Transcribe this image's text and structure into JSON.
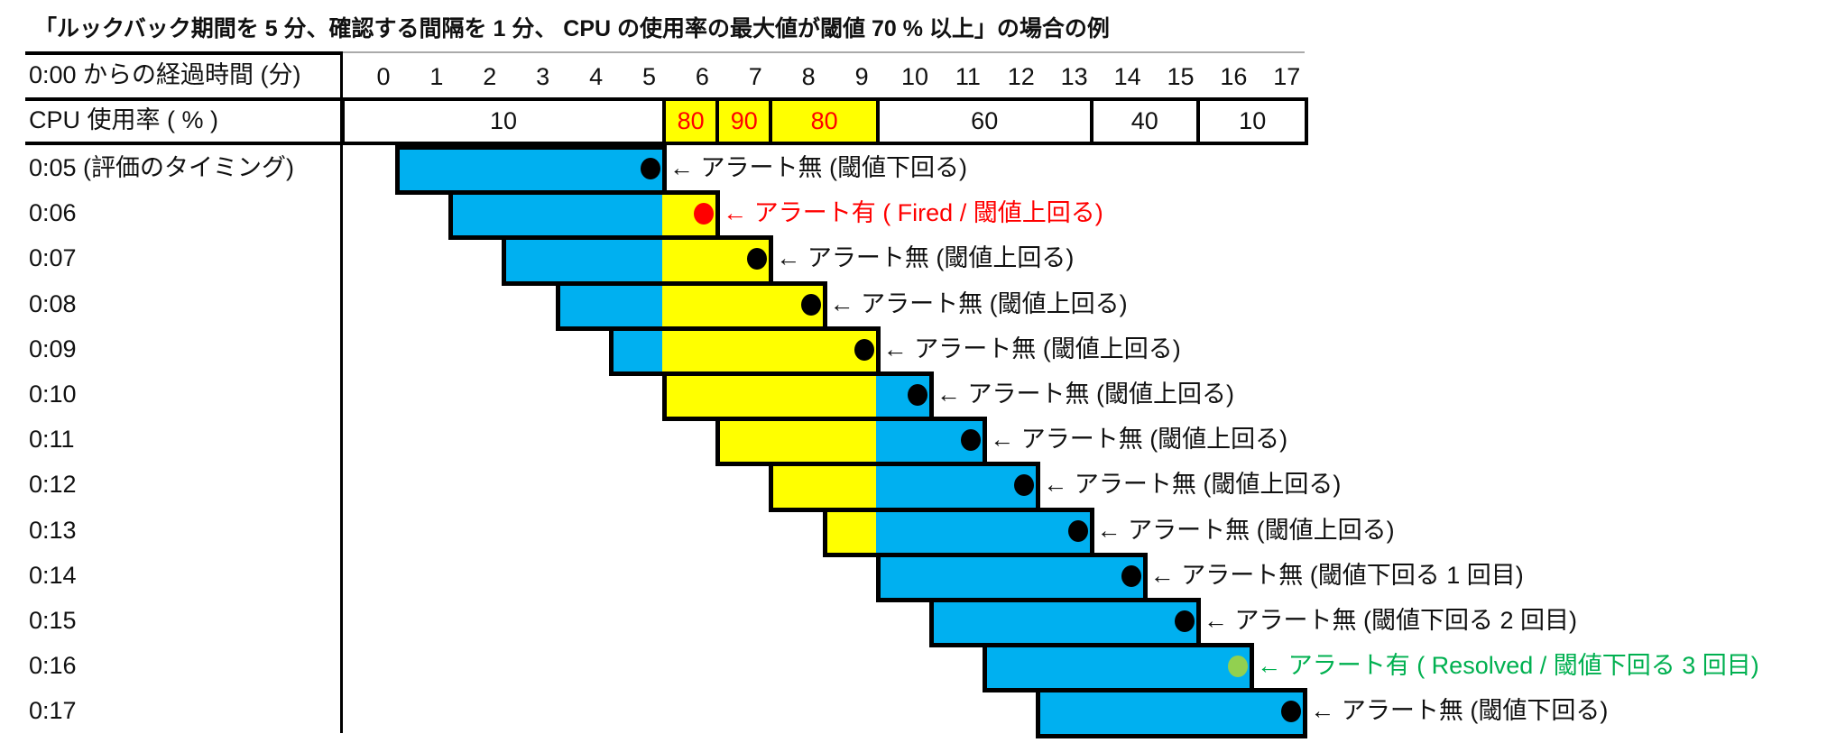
{
  "title": "「ルックバック期間を 5 分、確認する間隔を 1 分、 CPU の使用率の最大値が閾値 70 % 以上」の場合の例",
  "header": {
    "elapsed_label": "0:00 からの経過時間 (分)",
    "minutes": [
      "0",
      "1",
      "2",
      "3",
      "4",
      "5",
      "6",
      "7",
      "8",
      "9",
      "10",
      "11",
      "12",
      "13",
      "14",
      "15",
      "16",
      "17"
    ],
    "cpu_label": "CPU 使用率 ( % )"
  },
  "threshold": 70,
  "cpu_segments": [
    {
      "from": 0,
      "to": 5,
      "value": "10",
      "highlight": false
    },
    {
      "from": 5,
      "to": 6,
      "value": "80",
      "highlight": true
    },
    {
      "from": 6,
      "to": 7,
      "value": "90",
      "highlight": true
    },
    {
      "from": 7,
      "to": 9,
      "value": "80",
      "highlight": true
    },
    {
      "from": 9,
      "to": 13,
      "value": "60",
      "highlight": false
    },
    {
      "from": 13,
      "to": 15,
      "value": "40",
      "highlight": false
    },
    {
      "from": 15,
      "to": 17,
      "value": "10",
      "highlight": false
    }
  ],
  "lookback_minutes": 5,
  "colors": {
    "below": "#00B0F0",
    "above": "#FFFF00",
    "fired": "#FF0000",
    "resolved_dot": "#92D050",
    "resolved_text": "#00B050",
    "normal": "#000000",
    "highlight_text": "#FF0000"
  },
  "rows": [
    {
      "time": "0:05 (評価のタイミング)",
      "end": 5,
      "note": "← アラート無 (閾値下回る)",
      "status": "normal"
    },
    {
      "time": "0:06",
      "end": 6,
      "note": "← アラート有 ( Fired / 閾値上回る)",
      "status": "fired"
    },
    {
      "time": "0:07",
      "end": 7,
      "note": "← アラート無 (閾値上回る)",
      "status": "normal"
    },
    {
      "time": "0:08",
      "end": 8,
      "note": "← アラート無 (閾値上回る)",
      "status": "normal"
    },
    {
      "time": "0:09",
      "end": 9,
      "note": "← アラート無 (閾値上回る)",
      "status": "normal"
    },
    {
      "time": "0:10",
      "end": 10,
      "note": "← アラート無 (閾値上回る)",
      "status": "normal"
    },
    {
      "time": "0:11",
      "end": 11,
      "note": "← アラート無 (閾値上回る)",
      "status": "normal"
    },
    {
      "time": "0:12",
      "end": 12,
      "note": "← アラート無 (閾値上回る)",
      "status": "normal"
    },
    {
      "time": "0:13",
      "end": 13,
      "note": "← アラート無 (閾値上回る)",
      "status": "normal"
    },
    {
      "time": "0:14",
      "end": 14,
      "note": "← アラート無 (閾値下回る 1 回目)",
      "status": "normal"
    },
    {
      "time": "0:15",
      "end": 15,
      "note": "← アラート無 (閾値下回る 2 回目)",
      "status": "normal"
    },
    {
      "time": "0:16",
      "end": 16,
      "note": "← アラート有 ( Resolved / 閾値下回る 3 回目)",
      "status": "resolved"
    },
    {
      "time": "0:17",
      "end": 17,
      "note": "← アラート無 (閾値下回る)",
      "status": "normal"
    }
  ]
}
